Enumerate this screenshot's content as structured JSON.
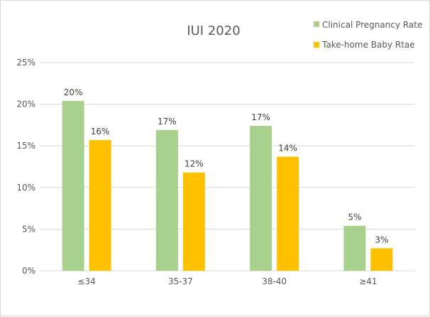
{
  "chart_data": {
    "type": "bar",
    "title": "IUI 2020",
    "categories": [
      "≤34",
      "35-37",
      "38-40",
      "≥41"
    ],
    "series": [
      {
        "name": "Clinical Pregnancy Rate",
        "color": "#a9d18e",
        "values": [
          20.4,
          16.9,
          17.4,
          5.4
        ],
        "labels": [
          "20%",
          "17%",
          "17%",
          "5%"
        ]
      },
      {
        "name": "Take-home Baby Rtae",
        "color": "#ffc000",
        "values": [
          15.7,
          11.8,
          13.7,
          2.7
        ],
        "labels": [
          "16%",
          "12%",
          "14%",
          "3%"
        ]
      }
    ],
    "y_ticks": [
      "0%",
      "5%",
      "10%",
      "15%",
      "20%",
      "25%"
    ],
    "ylim": [
      0,
      25
    ],
    "xlabel": "",
    "ylabel": "",
    "grid": true,
    "gridline_color": "#d9d9d9",
    "legend_position": "top-right"
  }
}
